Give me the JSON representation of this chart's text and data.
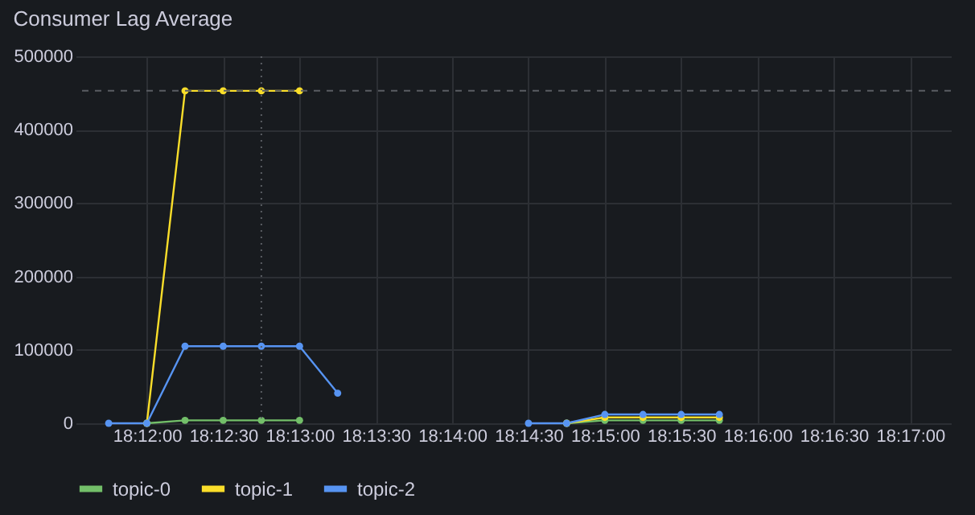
{
  "chart_data": {
    "type": "line",
    "title": "Consumer Lag Average",
    "x": [
      18.195833,
      18.2,
      18.204167,
      18.208333,
      18.2125,
      18.216667,
      18.220833,
      18.233333,
      18.241667,
      18.245833,
      18.25,
      18.254167,
      18.258333,
      18.2625
    ],
    "series": [
      {
        "name": "topic-0",
        "color": "#73bf69",
        "values": [
          null,
          0,
          4000,
          4000,
          4000,
          4000,
          null,
          null,
          null,
          0,
          4000,
          4000,
          4000,
          4000
        ]
      },
      {
        "name": "topic-1",
        "color": "#fade2a",
        "values": [
          null,
          0,
          453000,
          453000,
          453000,
          453000,
          null,
          null,
          null,
          0,
          8000,
          8000,
          8000,
          8000
        ]
      },
      {
        "name": "topic-2",
        "color": "#5794f2",
        "values": [
          0,
          0,
          105000,
          105000,
          105000,
          105000,
          41000,
          null,
          0,
          0,
          12000,
          12000,
          12000,
          12000
        ]
      }
    ],
    "xlim": [
      18.192222,
      18.287778
    ],
    "xticks": [
      {
        "value": 18.2,
        "label": "18:12:00"
      },
      {
        "value": 18.208333,
        "label": "18:12:30"
      },
      {
        "value": 18.216667,
        "label": "18:13:00"
      },
      {
        "value": 18.225,
        "label": "18:13:30"
      },
      {
        "value": 18.233333,
        "label": "18:14:00"
      },
      {
        "value": 18.241667,
        "label": "18:14:30"
      },
      {
        "value": 18.25,
        "label": "18:15:00"
      },
      {
        "value": 18.258333,
        "label": "18:15:30"
      },
      {
        "value": 18.266667,
        "label": "18:16:00"
      },
      {
        "value": 18.275,
        "label": "18:16:30"
      },
      {
        "value": 18.283333,
        "label": "18:17:00"
      }
    ],
    "ylim": [
      0,
      500000
    ],
    "yticks": [
      0,
      100000,
      200000,
      300000,
      400000,
      500000
    ],
    "ref_lines": [
      {
        "axis": "y",
        "value": 453000,
        "color": "#5a5d63",
        "line_style": "dashed"
      },
      {
        "axis": "x",
        "value": 18.2125,
        "color": "#5a5d63",
        "line_style": "dotted"
      }
    ],
    "grid": true,
    "legend": "bottom left",
    "marker": "circle",
    "line_style": "solid"
  }
}
